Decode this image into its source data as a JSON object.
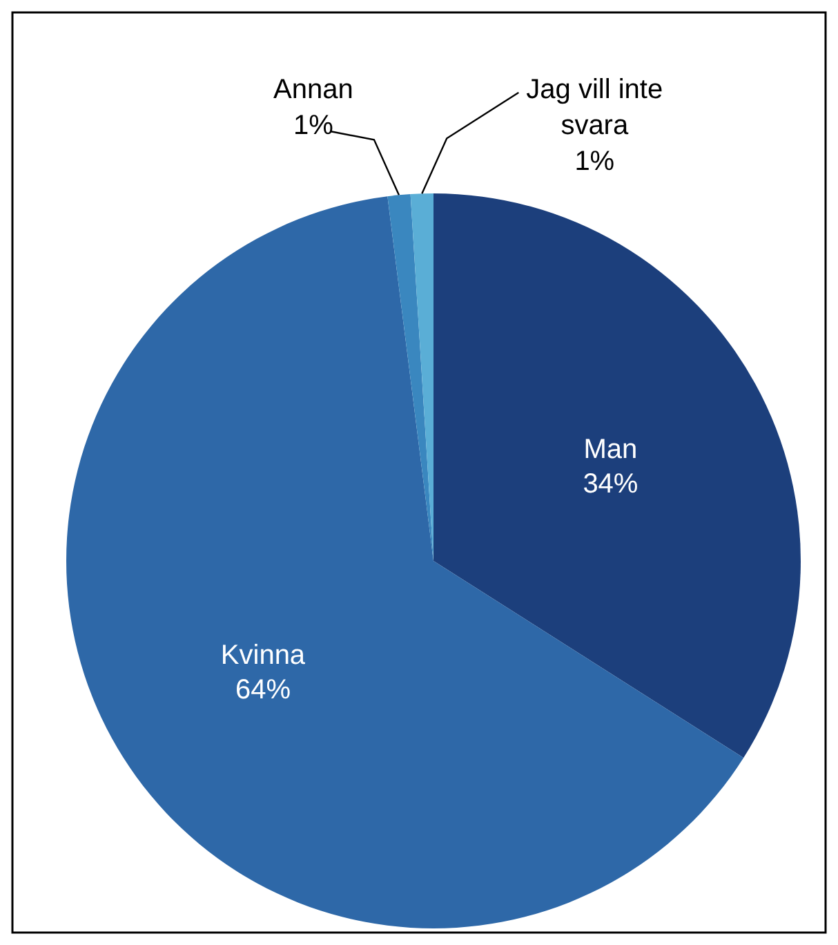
{
  "chart_data": {
    "type": "pie",
    "categories": [
      "Man",
      "Kvinna",
      "Annan",
      "Jag vill inte svara"
    ],
    "values": [
      34,
      64,
      1,
      1
    ],
    "colors": [
      "#1c3f7c",
      "#2e68a8",
      "#3a87bf",
      "#5aaed6"
    ],
    "value_labels": [
      "34%",
      "64%",
      "1%",
      "1%"
    ]
  }
}
